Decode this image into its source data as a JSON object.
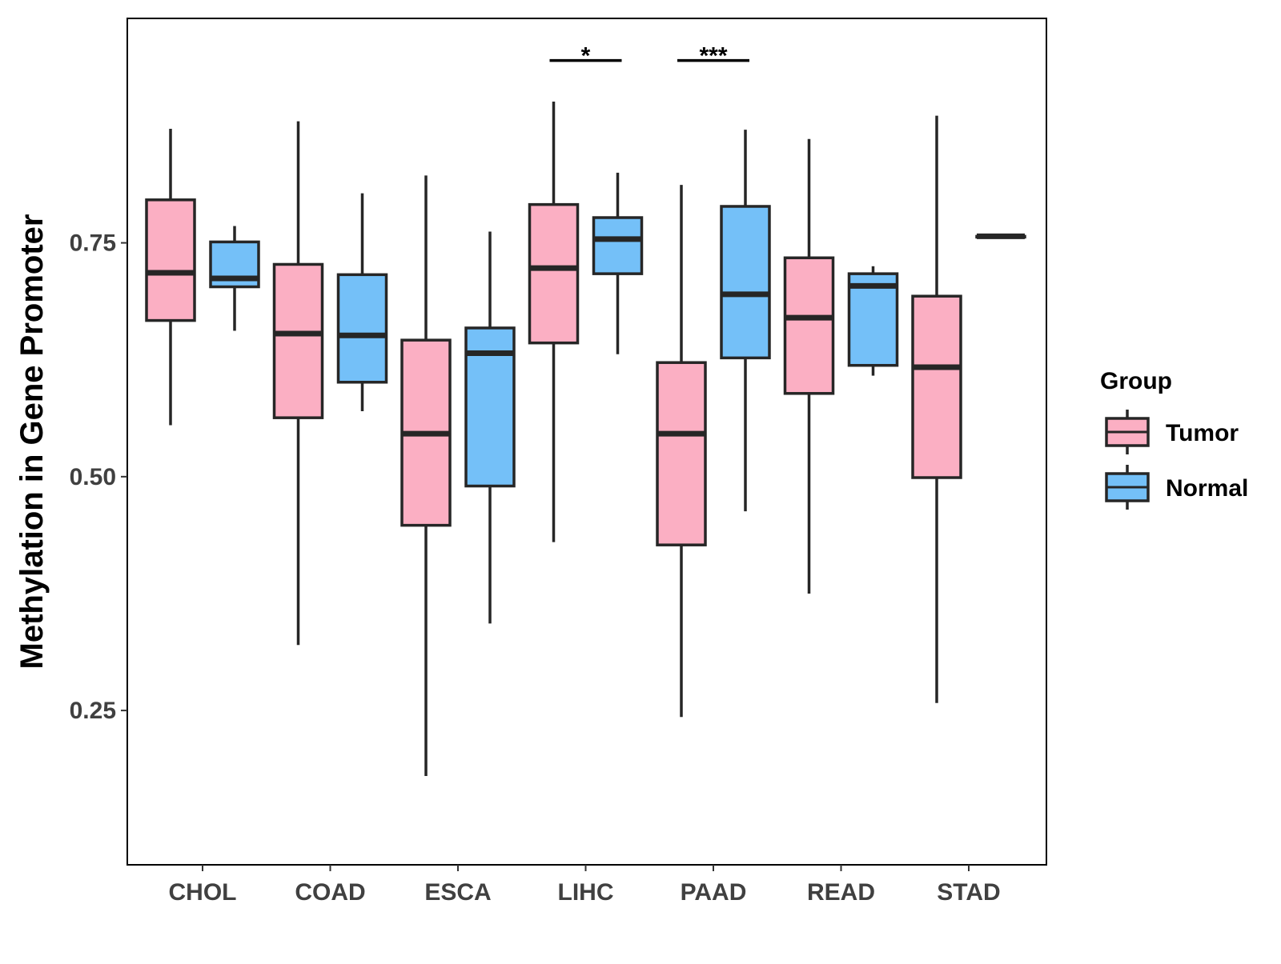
{
  "chart_data": {
    "type": "boxplot",
    "title": "",
    "xlabel": "",
    "ylabel": "Methylation in Gene Promoter",
    "ylim": [
      0.085,
      0.99
    ],
    "yticks": [
      0.25,
      0.5,
      0.75
    ],
    "ytick_labels": [
      "0.25",
      "0.50",
      "0.75"
    ],
    "categories": [
      "CHOL",
      "COAD",
      "ESCA",
      "LIHC",
      "PAAD",
      "READ",
      "STAD"
    ],
    "grid": false,
    "legend": {
      "title": "Group",
      "position": "right",
      "entries": [
        {
          "name": "Tumor",
          "color": "#FBAFC3"
        },
        {
          "name": "Normal",
          "color": "#74C0F8"
        }
      ]
    },
    "series": [
      {
        "name": "Tumor",
        "color": "#FBAFC3",
        "boxes": [
          {
            "category": "CHOL",
            "whisker_low": 0.555,
            "q1": 0.667,
            "median": 0.718,
            "q3": 0.796,
            "whisker_high": 0.872
          },
          {
            "category": "COAD",
            "whisker_low": 0.32,
            "q1": 0.563,
            "median": 0.653,
            "q3": 0.727,
            "whisker_high": 0.88
          },
          {
            "category": "ESCA",
            "whisker_low": 0.18,
            "q1": 0.448,
            "median": 0.546,
            "q3": 0.646,
            "whisker_high": 0.822
          },
          {
            "category": "LIHC",
            "whisker_low": 0.43,
            "q1": 0.643,
            "median": 0.723,
            "q3": 0.791,
            "whisker_high": 0.901
          },
          {
            "category": "PAAD",
            "whisker_low": 0.243,
            "q1": 0.427,
            "median": 0.546,
            "q3": 0.622,
            "whisker_high": 0.812
          },
          {
            "category": "READ",
            "whisker_low": 0.375,
            "q1": 0.589,
            "median": 0.67,
            "q3": 0.734,
            "whisker_high": 0.861
          },
          {
            "category": "STAD",
            "whisker_low": 0.258,
            "q1": 0.499,
            "median": 0.617,
            "q3": 0.693,
            "whisker_high": 0.886
          }
        ]
      },
      {
        "name": "Normal",
        "color": "#74C0F8",
        "boxes": [
          {
            "category": "CHOL",
            "whisker_low": 0.656,
            "q1": 0.703,
            "median": 0.712,
            "q3": 0.751,
            "whisker_high": 0.768
          },
          {
            "category": "COAD",
            "whisker_low": 0.57,
            "q1": 0.601,
            "median": 0.651,
            "q3": 0.716,
            "whisker_high": 0.803
          },
          {
            "category": "ESCA",
            "whisker_low": 0.343,
            "q1": 0.49,
            "median": 0.632,
            "q3": 0.659,
            "whisker_high": 0.762
          },
          {
            "category": "LIHC",
            "whisker_low": 0.631,
            "q1": 0.717,
            "median": 0.754,
            "q3": 0.777,
            "whisker_high": 0.825
          },
          {
            "category": "PAAD",
            "whisker_low": 0.463,
            "q1": 0.627,
            "median": 0.695,
            "q3": 0.789,
            "whisker_high": 0.871
          },
          {
            "category": "READ",
            "whisker_low": 0.608,
            "q1": 0.619,
            "median": 0.704,
            "q3": 0.717,
            "whisker_high": 0.725
          },
          {
            "category": "STAD",
            "whisker_low": 0.757,
            "q1": 0.757,
            "median": 0.757,
            "q3": 0.757,
            "whisker_high": 0.757
          }
        ]
      }
    ],
    "annotations": [
      {
        "category": "LIHC",
        "label": "*",
        "y": 0.945
      },
      {
        "category": "PAAD",
        "label": "***",
        "y": 0.945
      }
    ]
  }
}
